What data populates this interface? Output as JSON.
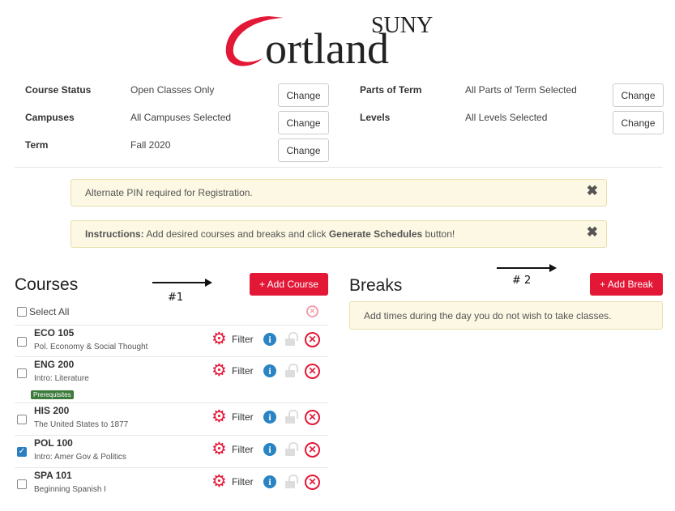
{
  "logo": {
    "text_top": "SUNY",
    "text_main": "Cortland",
    "brand_color": "#e31837"
  },
  "filters": {
    "left": [
      {
        "label": "Course Status",
        "value": "Open Classes Only",
        "button": "Change"
      },
      {
        "label": "Campuses",
        "value": "All Campuses Selected",
        "button": "Change"
      },
      {
        "label": "Term",
        "value": "Fall 2020",
        "button": "Change"
      }
    ],
    "right": [
      {
        "label": "Parts of Term",
        "value": "All Parts of Term Selected",
        "button": "Change"
      },
      {
        "label": "Levels",
        "value": "All Levels Selected",
        "button": "Change"
      }
    ]
  },
  "alerts": {
    "pin": "Alternate PIN required for Registration.",
    "instr_bold1": "Instructions:",
    "instr_text1": " Add desired courses and breaks and click ",
    "instr_bold2": "Generate Schedules",
    "instr_text2": " button!",
    "close": "✖"
  },
  "courses": {
    "heading": "Courses",
    "add_button": "+ Add Course",
    "select_all": "Select All",
    "filter_label": "Filter",
    "items": [
      {
        "code": "ECO 105",
        "title": "Pol. Economy & Social Thought",
        "checked": false
      },
      {
        "code": "ENG 200",
        "title": "Intro: Literature",
        "checked": false,
        "badge": "Prerequisites"
      },
      {
        "code": "HIS 200",
        "title": "The United States to 1877",
        "checked": false
      },
      {
        "code": "POL 100",
        "title": "Intro: Amer Gov & Politics",
        "checked": true
      },
      {
        "code": "SPA 101",
        "title": "Beginning Spanish I",
        "checked": false
      }
    ]
  },
  "breaks": {
    "heading": "Breaks",
    "add_button": "+ Add Break",
    "info": "Add times during the day you do not wish to take classes."
  },
  "annotations": {
    "n1": "#1",
    "n2": "# 2"
  }
}
